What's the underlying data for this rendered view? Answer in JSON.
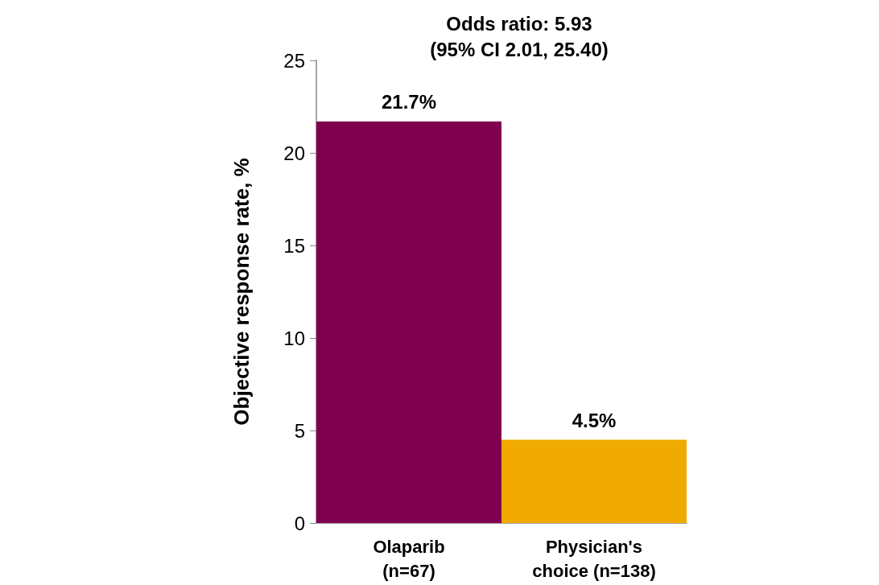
{
  "chart_data": {
    "type": "bar",
    "title": "Odds ratio: 5.93\n(95% CI 2.01, 25.40)",
    "ylabel": "Objective response rate, %",
    "categories": [
      "Olaparib\n(n=67)",
      "Physician's\nchoice (n=138)"
    ],
    "values": [
      21.7,
      4.5
    ],
    "colors": [
      "#800050",
      "#f0aa00"
    ],
    "value_labels": [
      "21.7%",
      "4.5%"
    ],
    "ylim": [
      0,
      25
    ],
    "yticks": [
      0,
      5,
      10,
      15,
      20,
      25
    ],
    "grid": false
  }
}
